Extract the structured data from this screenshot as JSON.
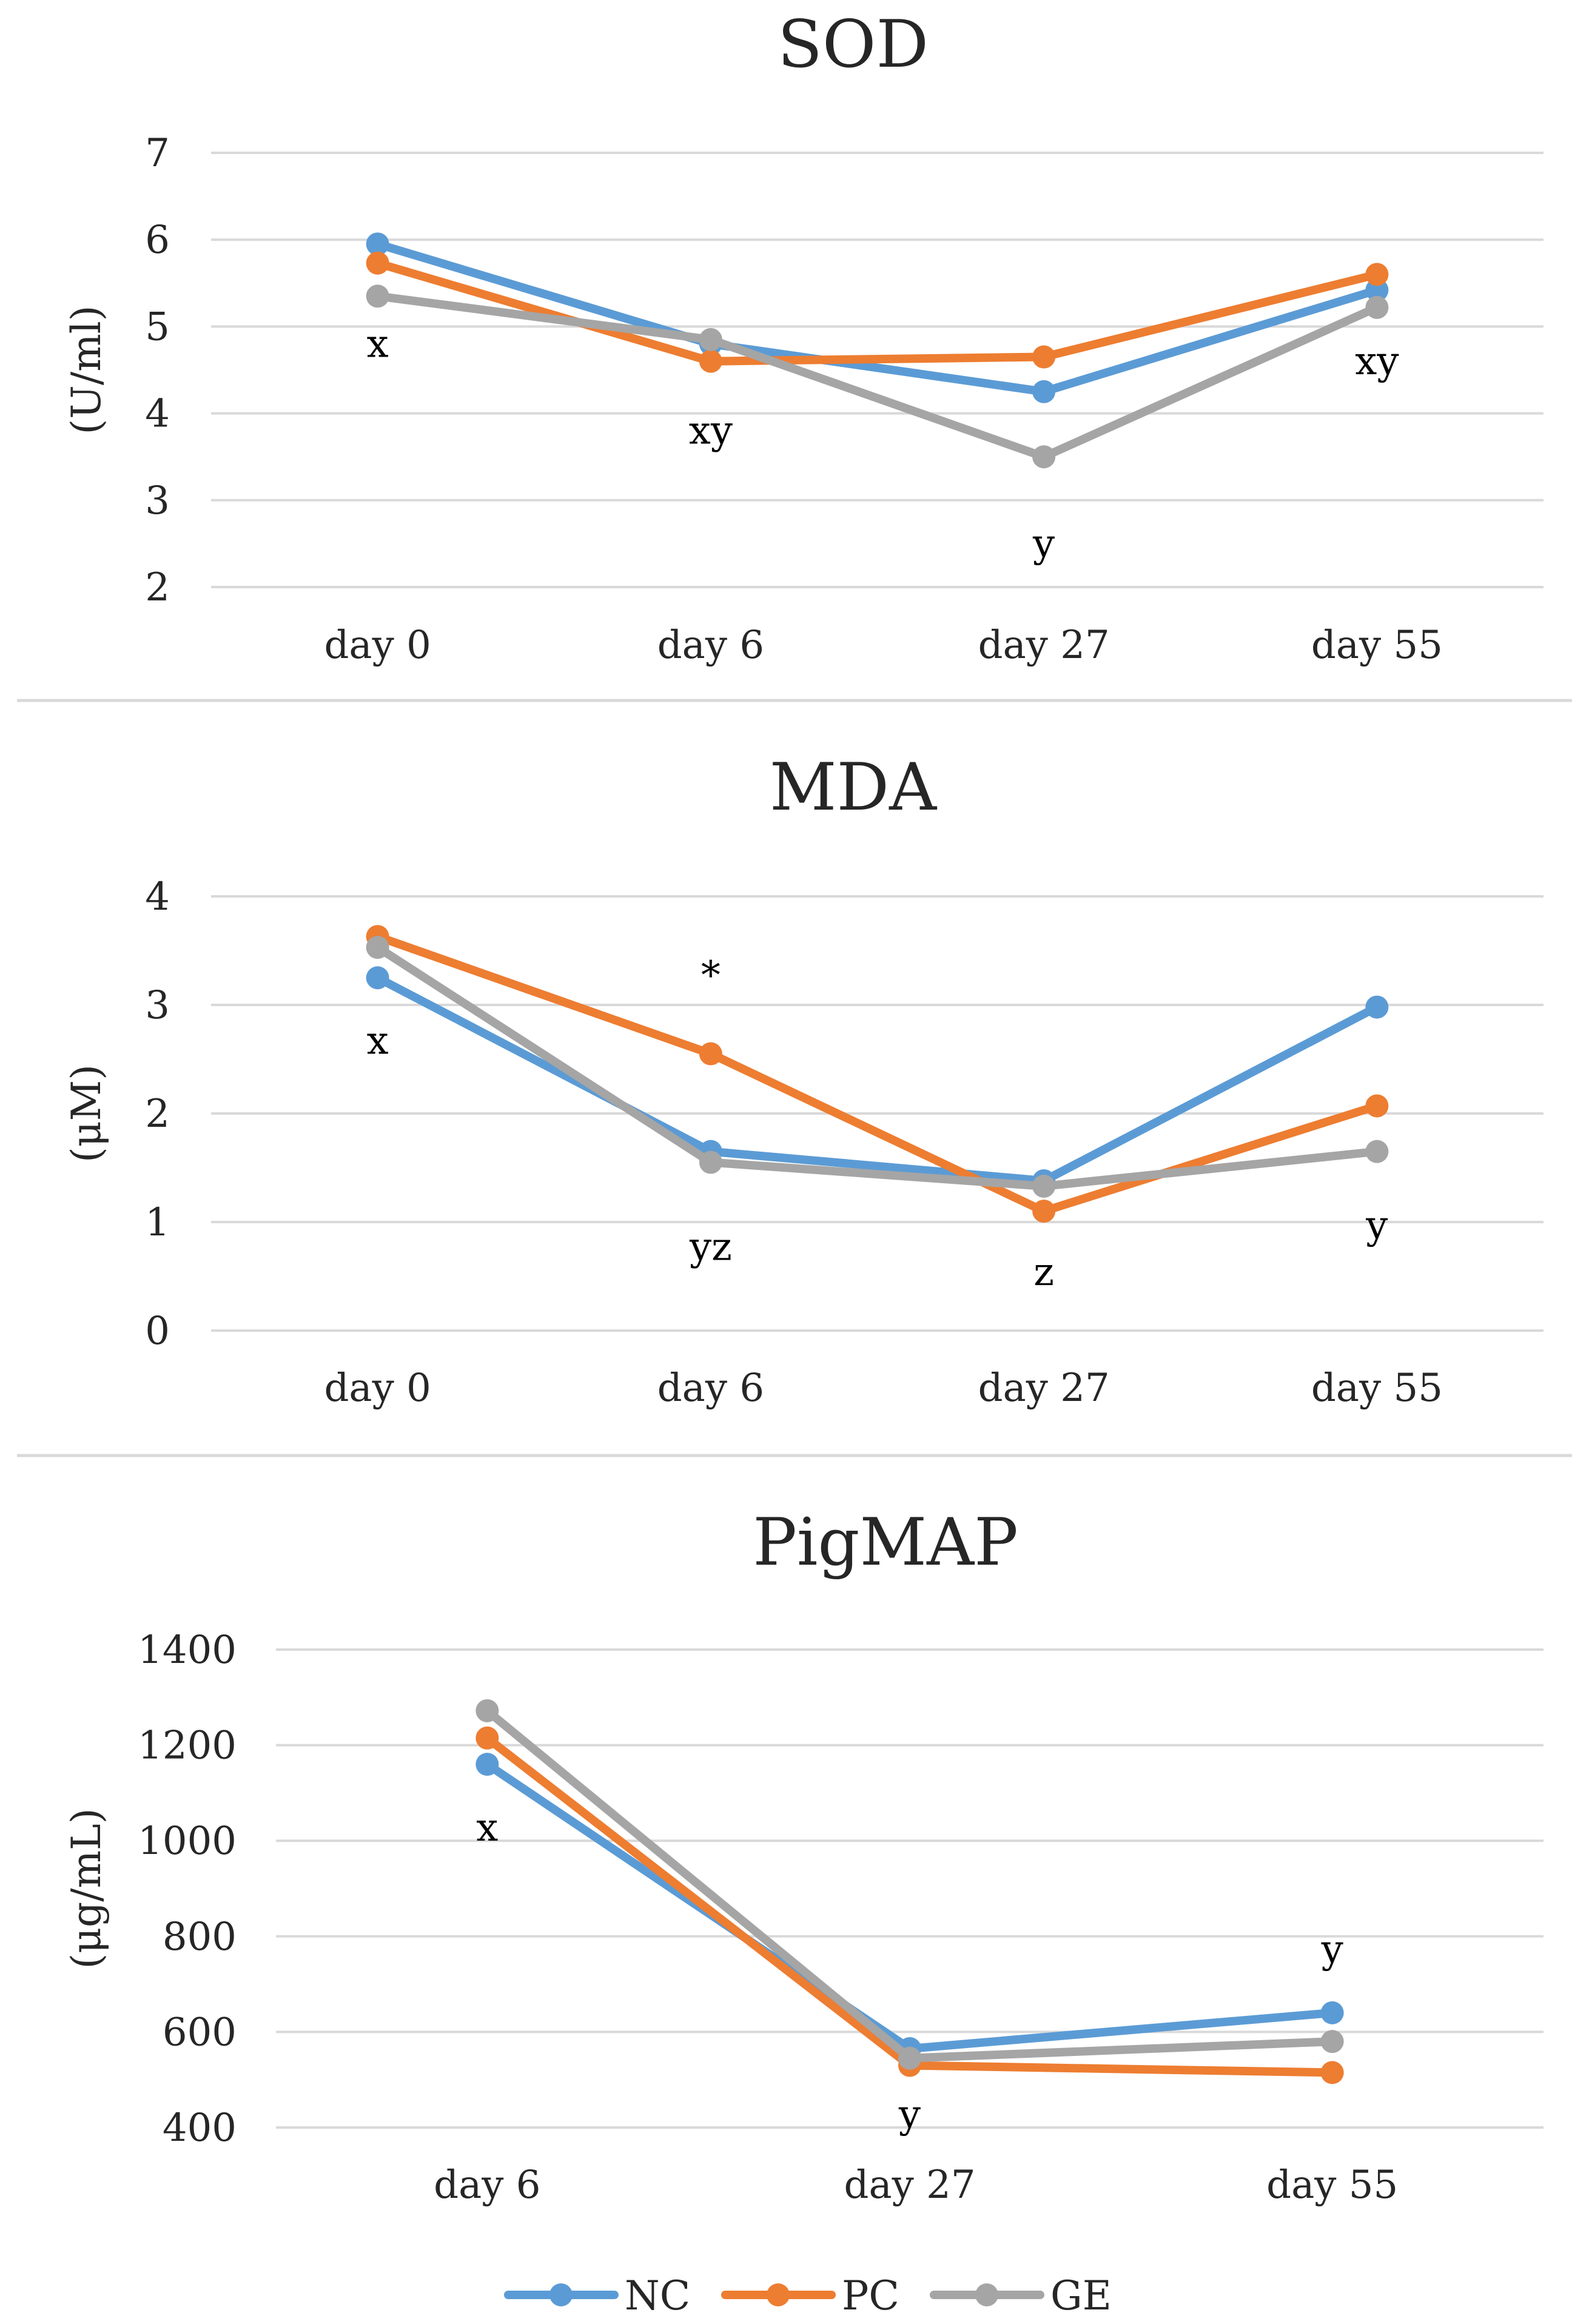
{
  "series_colors": {
    "NC": "#5b9bd5",
    "PC": "#ed7d31",
    "GE": "#a5a5a5"
  },
  "legend": [
    "NC",
    "PC",
    "GE"
  ],
  "chart_data": [
    {
      "type": "line",
      "title": "SOD",
      "ylabel": "(U/ml)",
      "xlabel": "",
      "categories": [
        "day 0",
        "day 6",
        "day 27",
        "day 55"
      ],
      "ylim": [
        2,
        7
      ],
      "yticks": [
        "2",
        "3",
        "4",
        "5",
        "6",
        "7"
      ],
      "grid": true,
      "series": [
        {
          "name": "NC",
          "values": [
            5.95,
            4.8,
            4.25,
            5.42
          ]
        },
        {
          "name": "PC",
          "values": [
            5.73,
            4.6,
            4.65,
            5.6
          ]
        },
        {
          "name": "GE",
          "values": [
            5.35,
            4.85,
            3.5,
            5.22
          ]
        }
      ],
      "annotations": [
        {
          "text": "x",
          "x": "day 0",
          "y": 4.65
        },
        {
          "text": "xy",
          "x": "day 6",
          "y": 3.65
        },
        {
          "text": "y",
          "x": "day 27",
          "y": 2.35
        },
        {
          "text": "xy",
          "x": "day 55",
          "y": 4.45
        }
      ]
    },
    {
      "type": "line",
      "title": "MDA",
      "ylabel": "(μM)",
      "xlabel": "",
      "categories": [
        "day 0",
        "day 6",
        "day 27",
        "day 55"
      ],
      "ylim": [
        0,
        4
      ],
      "yticks": [
        "0",
        "1",
        "2",
        "3",
        "4"
      ],
      "grid": true,
      "series": [
        {
          "name": "NC",
          "values": [
            3.25,
            1.65,
            1.38,
            2.98
          ]
        },
        {
          "name": "PC",
          "values": [
            3.63,
            2.55,
            1.1,
            2.07
          ]
        },
        {
          "name": "GE",
          "values": [
            3.53,
            1.55,
            1.33,
            1.65
          ]
        }
      ],
      "annotations": [
        {
          "text": "x",
          "x": "day 0",
          "y": 2.55
        },
        {
          "text": "*",
          "x": "day 6",
          "y": 3.15
        },
        {
          "text": "yz",
          "x": "day 6",
          "y": 0.65
        },
        {
          "text": "z",
          "x": "day 27",
          "y": 0.42
        },
        {
          "text": "y",
          "x": "day 55",
          "y": 0.85
        }
      ]
    },
    {
      "type": "line",
      "title": "PigMAP",
      "ylabel": "(μg/mL)",
      "xlabel": "",
      "categories": [
        "day 6",
        "day 27",
        "day 55"
      ],
      "ylim": [
        400,
        1400
      ],
      "yticks": [
        "400",
        "600",
        "800",
        "1000",
        "1200",
        "1400"
      ],
      "grid": true,
      "series": [
        {
          "name": "NC",
          "values": [
            1160,
            565,
            640
          ]
        },
        {
          "name": "PC",
          "values": [
            1215,
            530,
            515
          ]
        },
        {
          "name": "GE",
          "values": [
            1272,
            545,
            580
          ]
        }
      ],
      "annotations": [
        {
          "text": "x",
          "x": "day 6",
          "y": 1000
        },
        {
          "text": "y",
          "x": "day 27",
          "y": 400
        },
        {
          "text": "y",
          "x": "day 55",
          "y": 745
        }
      ]
    }
  ]
}
